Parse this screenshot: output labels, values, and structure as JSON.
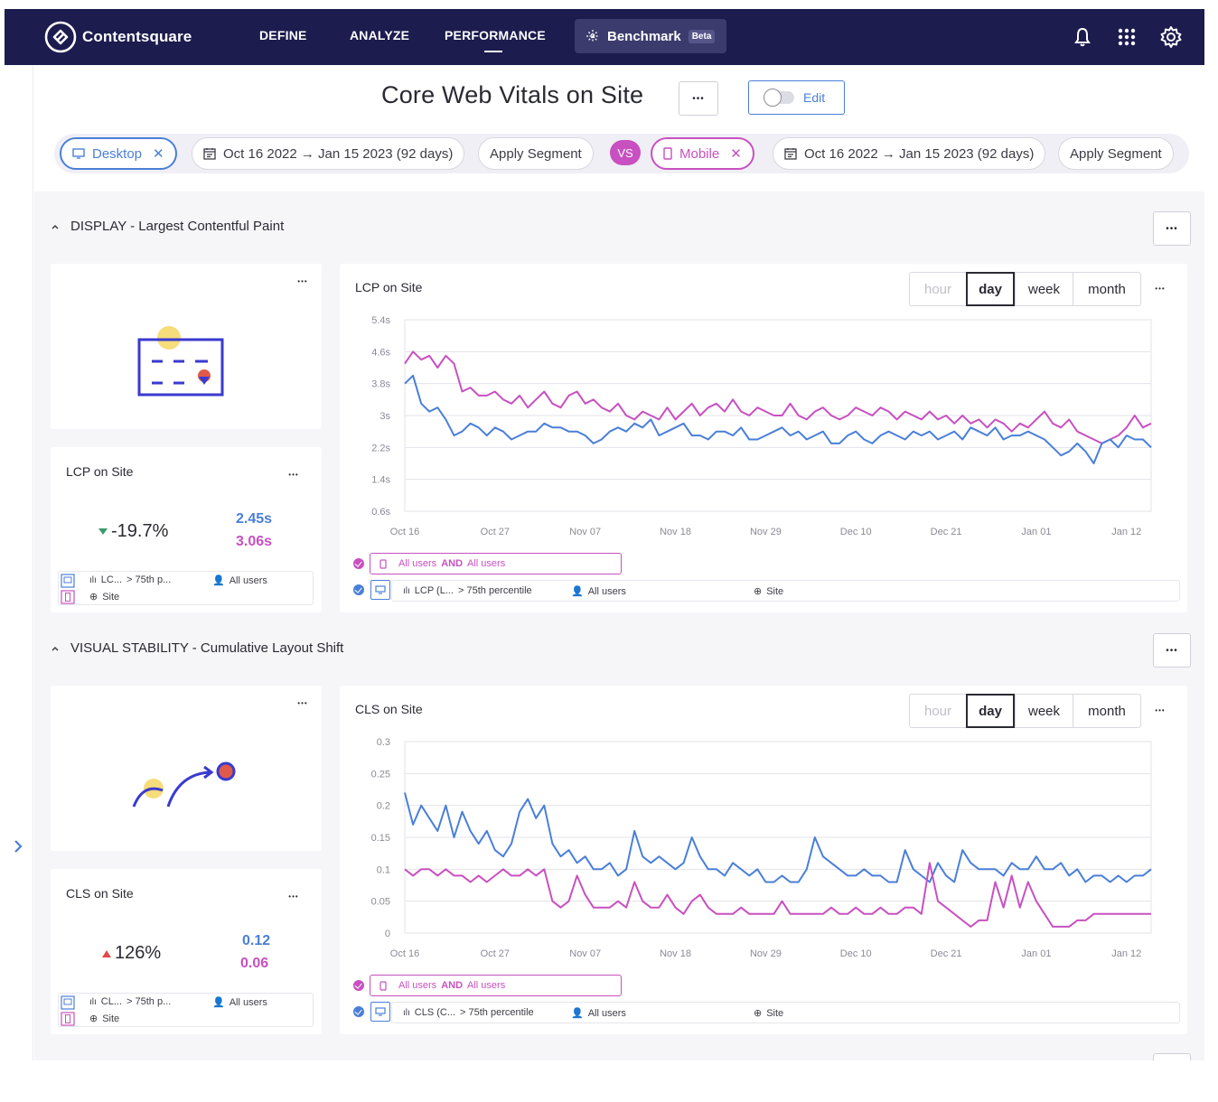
{
  "topbar": {
    "brand": "Contentsquare",
    "nav": [
      "DEFINE",
      "ANALYZE",
      "PERFORMANCE"
    ],
    "active_nav": "PERFORMANCE",
    "benchmark_label": "Benchmark",
    "beta_badge": "Beta",
    "icons": [
      "bell-icon",
      "apps-grid-icon",
      "gear-icon"
    ],
    "background": "#1c1c4f"
  },
  "page": {
    "title": "Core Web Vitals on Site",
    "more_label": "•••",
    "edit_label": "Edit"
  },
  "segments": {
    "left_device": "Desktop",
    "left_range": "Oct 16 2022 → Jan 15 2023 (92 days)",
    "left_apply": "Apply Segment",
    "vs_label": "VS",
    "right_device": "Mobile",
    "right_range": "Oct 16 2022 → Jan 15 2023 (92 days)",
    "right_apply": "Apply Segment"
  },
  "colors": {
    "desktop": "#4a7fd8",
    "mobile": "#c850c0",
    "positive": "#3a9a6a",
    "negative": "#e04b4b"
  },
  "more_dots": "•••",
  "granularity": {
    "options": [
      "hour",
      "day",
      "week",
      "month"
    ],
    "selected": "day"
  },
  "sections": [
    {
      "heading": "DISPLAY - Largest Contentful Paint",
      "kpi": {
        "title": "LCP on Site",
        "delta": "-19.7%",
        "direction": "down",
        "desktop_value": "2.45s",
        "mobile_value": "3.06s",
        "metric_short": "LC...",
        "percentile_short": "> 75th p...",
        "users": "All users",
        "page": "Site"
      },
      "chart_card": {
        "title": "LCP on Site",
        "mobile_legend_prefix": "All users",
        "mobile_legend_and": "AND",
        "mobile_legend_suffix": "All users",
        "desktop_metric": "LCP (L...",
        "desktop_percentile": "> 75th percentile",
        "desktop_users": "All users",
        "desktop_page": "Site"
      }
    },
    {
      "heading": "VISUAL STABILITY - Cumulative Layout Shift",
      "kpi": {
        "title": "CLS on Site",
        "delta": "126%",
        "direction": "up",
        "desktop_value": "0.12",
        "mobile_value": "0.06",
        "metric_short": "CL...",
        "percentile_short": "> 75th p...",
        "users": "All users",
        "page": "Site"
      },
      "chart_card": {
        "title": "CLS on Site",
        "mobile_legend_prefix": "All users",
        "mobile_legend_and": "AND",
        "mobile_legend_suffix": "All users",
        "desktop_metric": "CLS (C...",
        "desktop_percentile": "> 75th percentile",
        "desktop_users": "All users",
        "desktop_page": "Site"
      }
    }
  ],
  "chart_data": [
    {
      "type": "line",
      "title": "LCP on Site",
      "x_tick_labels": [
        "Oct 16",
        "Oct 27",
        "Nov 07",
        "Nov 18",
        "Nov 29",
        "Dec 10",
        "Dec 21",
        "Jan 01",
        "Jan 12"
      ],
      "y_tick_labels": [
        "0.6s",
        "1.4s",
        "2.2s",
        "3s",
        "3.8s",
        "4.6s",
        "5.4s"
      ],
      "ylim": [
        0.6,
        5.4
      ],
      "grid": true,
      "series": [
        {
          "color": "#c850c0",
          "values": [
            4.3,
            4.6,
            4.4,
            4.5,
            4.2,
            4.5,
            4.3,
            3.6,
            3.7,
            3.5,
            3.5,
            3.6,
            3.4,
            3.3,
            3.5,
            3.2,
            3.4,
            3.6,
            3.3,
            3.2,
            3.5,
            3.6,
            3.3,
            3.4,
            3.2,
            3.1,
            3.3,
            3.0,
            2.9,
            3.1,
            3.0,
            2.9,
            3.2,
            2.9,
            3.1,
            3.3,
            3.0,
            3.2,
            3.3,
            3.1,
            3.4,
            3.1,
            3.0,
            3.2,
            3.1,
            3.0,
            3.0,
            3.3,
            3.0,
            2.9,
            3.1,
            3.2,
            3.0,
            2.9,
            3.0,
            3.2,
            3.1,
            3.0,
            3.2,
            3.1,
            2.9,
            3.1,
            3.0,
            2.9,
            3.1,
            2.9,
            3.0,
            2.8,
            3.0,
            2.8,
            2.9,
            2.7,
            2.9,
            2.8,
            2.6,
            2.8,
            2.7,
            2.9,
            3.1,
            2.8,
            2.7,
            2.9,
            2.6,
            2.5,
            2.4,
            2.3,
            2.4,
            2.5,
            2.7,
            3.0,
            2.7,
            2.8
          ]
        },
        {
          "color": "#4a7fd8",
          "values": [
            3.8,
            4.0,
            3.3,
            3.1,
            3.2,
            2.9,
            2.5,
            2.6,
            2.8,
            2.7,
            2.5,
            2.7,
            2.6,
            2.4,
            2.5,
            2.6,
            2.6,
            2.8,
            2.7,
            2.7,
            2.6,
            2.6,
            2.5,
            2.3,
            2.4,
            2.6,
            2.7,
            2.6,
            2.8,
            2.7,
            2.9,
            2.5,
            2.6,
            2.7,
            2.8,
            2.5,
            2.5,
            2.4,
            2.6,
            2.6,
            2.5,
            2.7,
            2.4,
            2.4,
            2.5,
            2.6,
            2.7,
            2.5,
            2.6,
            2.4,
            2.5,
            2.6,
            2.3,
            2.3,
            2.5,
            2.6,
            2.4,
            2.3,
            2.5,
            2.6,
            2.5,
            2.4,
            2.6,
            2.5,
            2.6,
            2.4,
            2.5,
            2.6,
            2.4,
            2.7,
            2.6,
            2.5,
            2.7,
            2.4,
            2.5,
            2.5,
            2.6,
            2.5,
            2.4,
            2.2,
            2.0,
            2.1,
            2.3,
            2.1,
            1.8,
            2.3,
            2.4,
            2.2,
            2.5,
            2.4,
            2.4,
            2.2
          ]
        }
      ]
    },
    {
      "type": "line",
      "title": "CLS on Site",
      "x_tick_labels": [
        "Oct 16",
        "Oct 27",
        "Nov 07",
        "Nov 18",
        "Nov 29",
        "Dec 10",
        "Dec 21",
        "Jan 01",
        "Jan 12"
      ],
      "y_tick_labels": [
        "0",
        "0.05",
        "0.1",
        "0.15",
        "0.2",
        "0.25",
        "0.3"
      ],
      "ylim": [
        0,
        0.3
      ],
      "grid": true,
      "series": [
        {
          "color": "#4a7fd8",
          "values": [
            0.22,
            0.17,
            0.2,
            0.18,
            0.16,
            0.2,
            0.15,
            0.19,
            0.16,
            0.14,
            0.16,
            0.13,
            0.12,
            0.14,
            0.19,
            0.21,
            0.18,
            0.2,
            0.14,
            0.12,
            0.13,
            0.11,
            0.12,
            0.1,
            0.1,
            0.11,
            0.09,
            0.1,
            0.16,
            0.12,
            0.11,
            0.12,
            0.11,
            0.1,
            0.11,
            0.15,
            0.12,
            0.1,
            0.1,
            0.09,
            0.11,
            0.1,
            0.09,
            0.1,
            0.08,
            0.08,
            0.09,
            0.08,
            0.08,
            0.1,
            0.15,
            0.12,
            0.11,
            0.1,
            0.09,
            0.09,
            0.1,
            0.09,
            0.09,
            0.08,
            0.08,
            0.13,
            0.1,
            0.09,
            0.08,
            0.11,
            0.09,
            0.08,
            0.13,
            0.11,
            0.1,
            0.1,
            0.1,
            0.09,
            0.11,
            0.1,
            0.1,
            0.12,
            0.1,
            0.1,
            0.11,
            0.09,
            0.1,
            0.08,
            0.09,
            0.09,
            0.08,
            0.09,
            0.08,
            0.09,
            0.09,
            0.1
          ]
        },
        {
          "color": "#c850c0",
          "values": [
            0.1,
            0.09,
            0.1,
            0.1,
            0.09,
            0.1,
            0.09,
            0.09,
            0.08,
            0.09,
            0.08,
            0.09,
            0.1,
            0.09,
            0.09,
            0.1,
            0.09,
            0.1,
            0.05,
            0.04,
            0.05,
            0.09,
            0.06,
            0.04,
            0.04,
            0.04,
            0.05,
            0.04,
            0.08,
            0.05,
            0.04,
            0.04,
            0.06,
            0.04,
            0.03,
            0.05,
            0.06,
            0.04,
            0.03,
            0.03,
            0.03,
            0.04,
            0.03,
            0.03,
            0.03,
            0.03,
            0.05,
            0.03,
            0.03,
            0.03,
            0.03,
            0.03,
            0.04,
            0.03,
            0.03,
            0.04,
            0.03,
            0.03,
            0.04,
            0.03,
            0.03,
            0.04,
            0.04,
            0.03,
            0.11,
            0.05,
            0.04,
            0.03,
            0.02,
            0.01,
            0.02,
            0.02,
            0.08,
            0.04,
            0.09,
            0.04,
            0.08,
            0.05,
            0.03,
            0.01,
            0.01,
            0.01,
            0.02,
            0.02,
            0.03,
            0.03,
            0.03,
            0.03,
            0.03,
            0.03,
            0.03,
            0.03
          ]
        }
      ]
    }
  ]
}
